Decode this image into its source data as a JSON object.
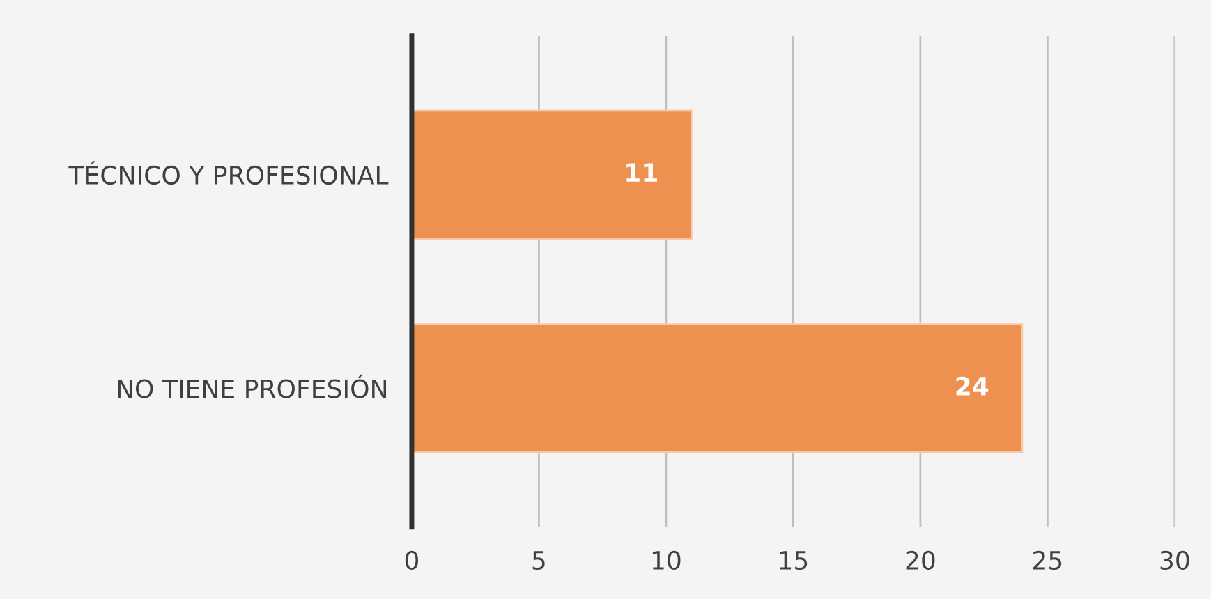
{
  "chart_data": {
    "type": "bar",
    "orientation": "horizontal",
    "categories": [
      "TÉCNICO Y PROFESIONAL",
      "NO TIENE PROFESIÓN"
    ],
    "values": [
      11,
      24
    ],
    "color": "#ee9150",
    "xlim": [
      0,
      30
    ],
    "xticks": [
      0,
      5,
      10,
      15,
      20,
      25,
      30
    ],
    "grid": "x",
    "data_labels": true
  }
}
